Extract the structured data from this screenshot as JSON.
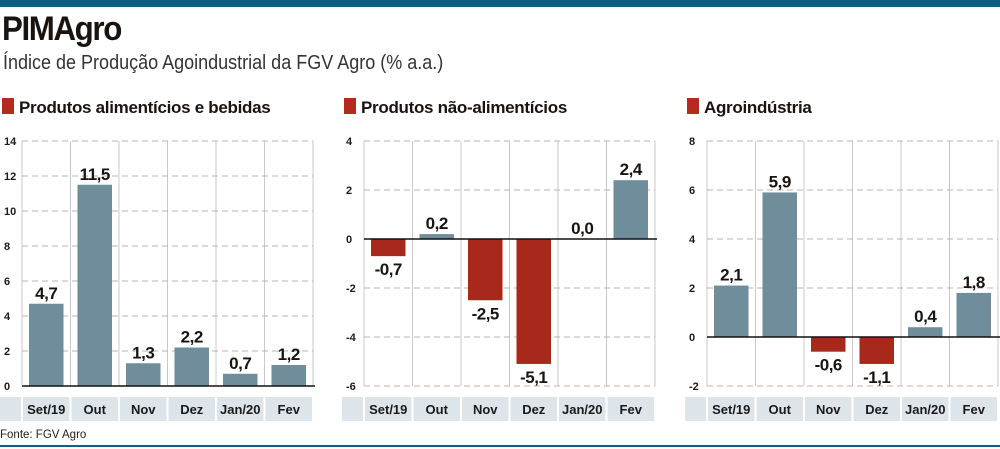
{
  "header": {
    "title": "PIMAgro",
    "subtitle": "Índice de Produção Agoindustrial da FGV Agro (% a.a.)"
  },
  "source": "Fonte: FGV Agro",
  "colors": {
    "positive": "#6f8d9b",
    "negative": "#a8291b",
    "legend_square": "#b22b1c",
    "category_band": "#dde4ea",
    "accent_bar": "#0e6083"
  },
  "chart_data": [
    {
      "type": "bar",
      "title": "Produtos alimentícios e bebidas",
      "categories": [
        "Set/19",
        "Out",
        "Nov",
        "Dez",
        "Jan/20",
        "Fev"
      ],
      "values": [
        4.7,
        11.5,
        1.3,
        2.2,
        0.7,
        1.2
      ],
      "labels": [
        "4,7",
        "11,5",
        "1,3",
        "2,2",
        "0,7",
        "1,2"
      ],
      "ylim": [
        0,
        14
      ],
      "yticks": [
        0,
        2,
        4,
        6,
        8,
        10,
        12,
        14
      ],
      "grid": true
    },
    {
      "type": "bar",
      "title": "Produtos não-alimentícios",
      "categories": [
        "Set/19",
        "Out",
        "Nov",
        "Dez",
        "Jan/20",
        "Fev"
      ],
      "values": [
        -0.7,
        0.2,
        -2.5,
        -5.1,
        0.0,
        2.4
      ],
      "labels": [
        "-0,7",
        "0,2",
        "-2,5",
        "-5,1",
        "0,0",
        "2,4"
      ],
      "ylim": [
        -6,
        4
      ],
      "yticks": [
        -6,
        -4,
        -2,
        0,
        2,
        4
      ],
      "grid": true
    },
    {
      "type": "bar",
      "title": "Agroindústria",
      "categories": [
        "Set/19",
        "Out",
        "Nov",
        "Dez",
        "Jan/20",
        "Fev"
      ],
      "values": [
        2.1,
        5.9,
        -0.6,
        -1.1,
        0.4,
        1.8
      ],
      "labels": [
        "2,1",
        "5,9",
        "-0,6",
        "-1,1",
        "0,4",
        "1,8"
      ],
      "ylim": [
        -2,
        8
      ],
      "yticks": [
        -2,
        0,
        2,
        4,
        6,
        8
      ],
      "grid": true
    }
  ]
}
